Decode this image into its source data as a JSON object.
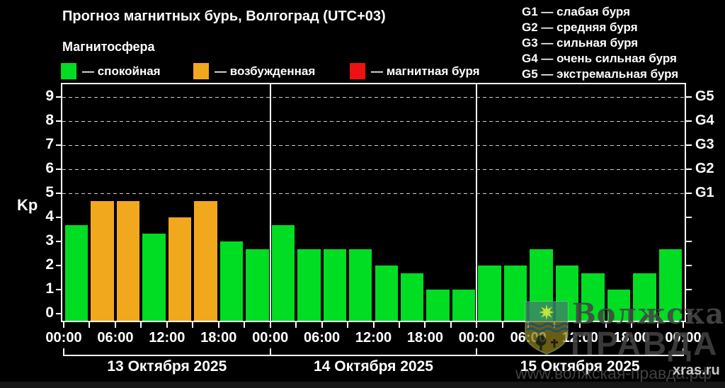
{
  "header": {
    "title": "Прогноз магнитных бурь, Волгоград (UTC+03)",
    "subtitle": "Магнитосфера"
  },
  "legend": {
    "items": [
      {
        "id": "quiet",
        "label": "— спокойная",
        "color": "#00DD22"
      },
      {
        "id": "unsettled",
        "label": "— возбужденная",
        "color": "#F2A81D"
      },
      {
        "id": "storm",
        "label": "— магнитная буря",
        "color": "#EE1111"
      }
    ]
  },
  "g_scale_legend": {
    "items": [
      "G1 — слабая буря",
      "G2 — средняя буря",
      "G3 — сильная буря",
      "G4 — очень сильная буря",
      "G5 — экстремальная буря"
    ]
  },
  "chart_data": {
    "type": "bar",
    "title": "Прогноз магнитных бурь, Волгоград (UTC+03)",
    "ylabel": "Kp",
    "ylim": [
      0,
      9
    ],
    "yticks": [
      0,
      1,
      2,
      3,
      4,
      5,
      6,
      7,
      8,
      9
    ],
    "grid_levels": [
      5,
      6,
      7,
      8,
      9
    ],
    "right_axis": [
      {
        "value": 5,
        "label": "G1"
      },
      {
        "value": 6,
        "label": "G2"
      },
      {
        "value": 7,
        "label": "G3"
      },
      {
        "value": 8,
        "label": "G4"
      },
      {
        "value": 9,
        "label": "G5"
      }
    ],
    "time_labels": [
      "00:00",
      "06:00",
      "12:00",
      "18:00",
      "00:00",
      "06:00",
      "12:00",
      "18:00",
      "00:00",
      "06:00",
      "12:00",
      "18:00",
      "00:00"
    ],
    "bar_colors": {
      "quiet": "#00DD22",
      "unsettled": "#F2A81D",
      "storm": "#EE1111"
    },
    "days": [
      {
        "date": "13 Октября 2025",
        "values": [
          3.67,
          4.67,
          4.67,
          3.33,
          4.0,
          4.67,
          3.0,
          2.67
        ],
        "levels": [
          "quiet",
          "unsettled",
          "unsettled",
          "quiet",
          "unsettled",
          "unsettled",
          "quiet",
          "quiet"
        ]
      },
      {
        "date": "14 Октября 2025",
        "values": [
          3.67,
          2.67,
          2.67,
          2.67,
          2.0,
          1.67,
          1.0,
          1.0
        ],
        "levels": [
          "quiet",
          "quiet",
          "quiet",
          "quiet",
          "quiet",
          "quiet",
          "quiet",
          "quiet"
        ]
      },
      {
        "date": "15 Октября 2025",
        "values": [
          2.0,
          2.0,
          2.67,
          2.0,
          1.67,
          1.0,
          1.67,
          2.67
        ],
        "levels": [
          "quiet",
          "quiet",
          "quiet",
          "quiet",
          "quiet",
          "quiet",
          "quiet",
          "quiet"
        ]
      }
    ]
  },
  "watermark": {
    "brand_line1": "Волжская",
    "brand_line2": "ПРАВДА",
    "site_url": "www.волжская-правда.рф",
    "source": "xras.ru",
    "emblem_icon": "volzhsky-city-emblem"
  }
}
